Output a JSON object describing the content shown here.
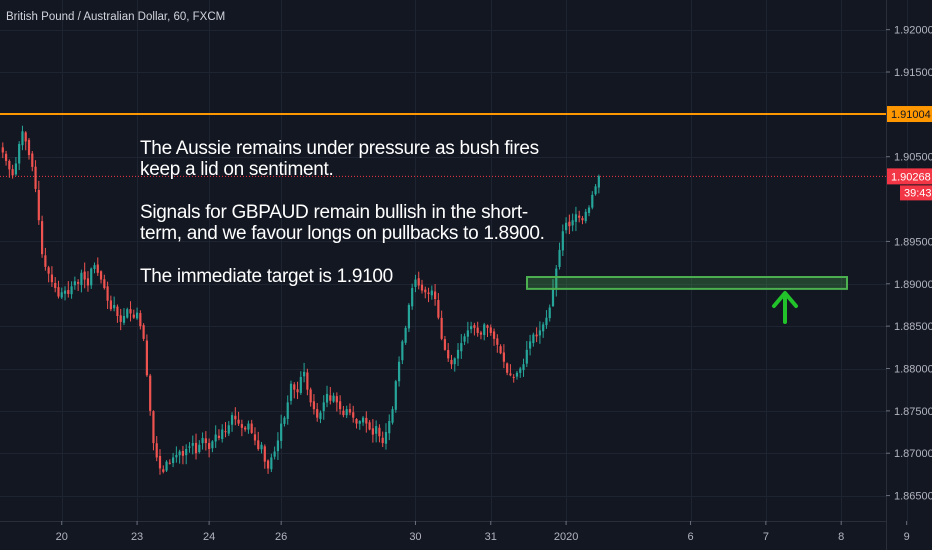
{
  "chart_data": {
    "type": "candlestick",
    "title": "British Pound / Australian Dollar, 60, FXCM",
    "ylim": [
      1.862,
      1.9235
    ],
    "y_ticks": [
      "1.92000",
      "1.91500",
      "1.90500",
      "1.89500",
      "1.89000",
      "1.88500",
      "1.88000",
      "1.87500",
      "1.87000",
      "1.86500"
    ],
    "y_tick_values": [
      1.92,
      1.915,
      1.905,
      1.895,
      1.89,
      1.885,
      1.88,
      1.875,
      1.87,
      1.865
    ],
    "x_ticks": [
      "20",
      "23",
      "24",
      "26",
      "30",
      "31",
      "2020",
      "6",
      "7",
      "8",
      "9"
    ],
    "x_tick_index": [
      18,
      41,
      63,
      85,
      126,
      149,
      172,
      210,
      233,
      256,
      276
    ],
    "resistance": {
      "value": 1.91004,
      "label": "1.91004",
      "color": "#ff9800"
    },
    "last_price": {
      "value": 1.90268,
      "label": "1.90268",
      "countdown": "39:43",
      "color": "#f23645"
    },
    "support_zone": {
      "low": 1.8894,
      "high": 1.8908,
      "color": "#4caf50"
    },
    "arrow_color": "#22c32a",
    "up_color": "#26a69a",
    "down_color": "#ef5350",
    "annotation_lines": [
      [
        "The Aussie remains under pressure as bush fires",
        "keep a lid on sentiment."
      ],
      [
        "Signals for GBPAUD remain bullish in the short-",
        "term, and we favour longs on pullbacks to 1.8900."
      ],
      [
        "The immediate target is 1.9100"
      ]
    ],
    "closes": [
      1.9055,
      1.9045,
      1.9035,
      1.9028,
      1.9042,
      1.9065,
      1.908,
      1.9068,
      1.9052,
      1.9038,
      1.9012,
      1.8975,
      1.8935,
      1.892,
      1.8912,
      1.8902,
      1.8895,
      1.8885,
      1.889,
      1.8892,
      1.8888,
      1.8897,
      1.8903,
      1.89,
      1.8913,
      1.8905,
      1.8898,
      1.8918,
      1.8922,
      1.8913,
      1.8905,
      1.8895,
      1.888,
      1.887,
      1.8875,
      1.8862,
      1.8855,
      1.8862,
      1.887,
      1.8865,
      1.886,
      1.8866,
      1.885,
      1.8835,
      1.8792,
      1.875,
      1.8712,
      1.8695,
      1.8682,
      1.8678,
      1.869,
      1.8688,
      1.8695,
      1.8698,
      1.8702,
      1.8697,
      1.8705,
      1.8708,
      1.8712,
      1.87,
      1.871,
      1.8718,
      1.8712,
      1.8705,
      1.8714,
      1.8722,
      1.8718,
      1.8728,
      1.8725,
      1.8733,
      1.8745,
      1.874,
      1.8735,
      1.873,
      1.8728,
      1.8735,
      1.8724,
      1.8715,
      1.8705,
      1.871,
      1.869,
      1.8682,
      1.8695,
      1.8702,
      1.8715,
      1.8735,
      1.8742,
      1.876,
      1.8782,
      1.8775,
      1.8772,
      1.879,
      1.8796,
      1.8775,
      1.876,
      1.8752,
      1.8742,
      1.8748,
      1.876,
      1.877,
      1.8762,
      1.8768,
      1.876,
      1.8752,
      1.8745,
      1.8752,
      1.8748,
      1.8742,
      1.8735,
      1.8738,
      1.8742,
      1.8735,
      1.8728,
      1.8722,
      1.8732,
      1.872,
      1.8712,
      1.8725,
      1.8738,
      1.8752,
      1.8785,
      1.8808,
      1.8832,
      1.8848,
      1.8875,
      1.8895,
      1.8905,
      1.8898,
      1.8892,
      1.889,
      1.8888,
      1.8892,
      1.8882,
      1.886,
      1.8835,
      1.8822,
      1.8812,
      1.8805,
      1.8812,
      1.8822,
      1.883,
      1.8838,
      1.8845,
      1.885,
      1.8848,
      1.8842,
      1.884,
      1.8852,
      1.8848,
      1.8842,
      1.8835,
      1.8828,
      1.8818,
      1.8808,
      1.8795,
      1.8792,
      1.879,
      1.8795,
      1.88,
      1.8805,
      1.8822,
      1.8832,
      1.884,
      1.8838,
      1.8845,
      1.8852,
      1.886,
      1.8872,
      1.8895,
      1.8918,
      1.894,
      1.8962,
      1.8972,
      1.8968,
      1.8975,
      1.8982,
      1.8978,
      1.8975,
      1.8985,
      1.899,
      1.9005,
      1.9015,
      1.9027
    ]
  }
}
